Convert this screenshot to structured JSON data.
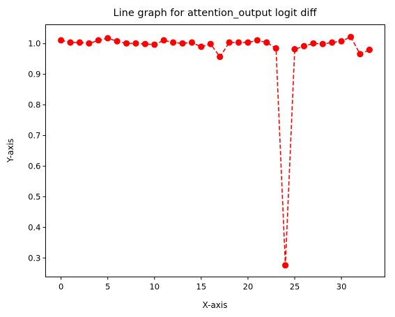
{
  "chart_data": {
    "type": "line",
    "title": "Line graph for attention_output logit diff",
    "xlabel": "X-axis",
    "ylabel": "Y-axis",
    "xlim": [
      -1.65,
      34.65
    ],
    "ylim": [
      0.238,
      1.062
    ],
    "xticks": [
      "0",
      "5",
      "10",
      "15",
      "20",
      "25",
      "30"
    ],
    "yticks": [
      "0.3",
      "0.4",
      "0.5",
      "0.6",
      "0.7",
      "0.8",
      "0.9",
      "1.0"
    ],
    "grid": false,
    "legend": false,
    "series": [
      {
        "color": "#ff0000",
        "line_style": "dashed",
        "marker": "circle",
        "x": [
          0,
          1,
          2,
          3,
          4,
          5,
          6,
          7,
          8,
          9,
          10,
          11,
          12,
          13,
          14,
          15,
          16,
          17,
          18,
          19,
          20,
          21,
          22,
          23,
          24,
          25,
          26,
          27,
          28,
          29,
          30,
          31,
          32,
          33
        ],
        "values": [
          1.011,
          1.004,
          1.004,
          1.001,
          1.011,
          1.018,
          1.008,
          1.001,
          1.001,
          0.999,
          0.997,
          1.011,
          1.004,
          1.001,
          1.004,
          0.99,
          0.999,
          0.957,
          1.004,
          1.004,
          1.004,
          1.011,
          1.004,
          0.985,
          0.276,
          0.982,
          0.992,
          1.001,
          0.999,
          1.004,
          1.008,
          1.022,
          0.966,
          0.98
        ]
      }
    ]
  }
}
